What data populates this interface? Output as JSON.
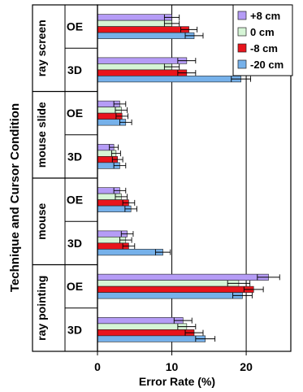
{
  "chart_data": {
    "type": "bar",
    "orientation": "horizontal",
    "xlabel": "Error Rate (%)",
    "ylabel": "Technique and Cursor Condition",
    "xlim": [
      0,
      26
    ],
    "xticks": [
      0,
      10,
      20
    ],
    "grid": "vertical lines at ticks",
    "legend_position": "top-right",
    "series_order_within_group": [
      "+8 cm",
      "0 cm",
      "-8 cm",
      "-20 cm"
    ],
    "series": [
      {
        "name": "+8 cm",
        "color": "#b59cf6"
      },
      {
        "name": "0 cm",
        "color": "#d6f5d6"
      },
      {
        "name": "-8 cm",
        "color": "#e8141c"
      },
      {
        "name": "-20 cm",
        "color": "#76b1ea"
      }
    ],
    "techniques": [
      {
        "name": "ray screen",
        "conditions": [
          {
            "label": "OE",
            "values": [
              10.0,
              10.0,
              12.3,
              13.0
            ],
            "errors": [
              1.0,
              1.0,
              1.1,
              1.2
            ]
          },
          {
            "label": "3D",
            "values": [
              12.0,
              10.0,
              12.0,
              19.3
            ],
            "errors": [
              1.2,
              1.0,
              1.2,
              1.3
            ]
          }
        ]
      },
      {
        "name": "mouse slide",
        "conditions": [
          {
            "label": "OE",
            "values": [
              3.0,
              3.2,
              3.3,
              3.8
            ],
            "errors": [
              0.8,
              0.8,
              0.8,
              0.8
            ]
          },
          {
            "label": "3D",
            "values": [
              2.2,
              2.5,
              2.7,
              3.0
            ],
            "errors": [
              0.6,
              0.6,
              0.7,
              0.8
            ]
          }
        ]
      },
      {
        "name": "mouse",
        "conditions": [
          {
            "label": "OE",
            "values": [
              3.0,
              3.2,
              4.2,
              4.5
            ],
            "errors": [
              0.8,
              0.8,
              0.8,
              0.8
            ]
          },
          {
            "label": "3D",
            "values": [
              4.0,
              3.8,
              4.2,
              8.8
            ],
            "errors": [
              0.8,
              0.8,
              0.8,
              1.0
            ]
          }
        ]
      },
      {
        "name": "ray pointing",
        "conditions": [
          {
            "label": "OE",
            "values": [
              23.0,
              19.0,
              21.0,
              19.5
            ],
            "errors": [
              1.5,
              1.5,
              1.3,
              1.3
            ]
          },
          {
            "label": "3D",
            "values": [
              11.5,
              12.0,
              13.0,
              14.5
            ],
            "errors": [
              1.2,
              1.2,
              1.2,
              1.3
            ]
          }
        ]
      }
    ]
  }
}
